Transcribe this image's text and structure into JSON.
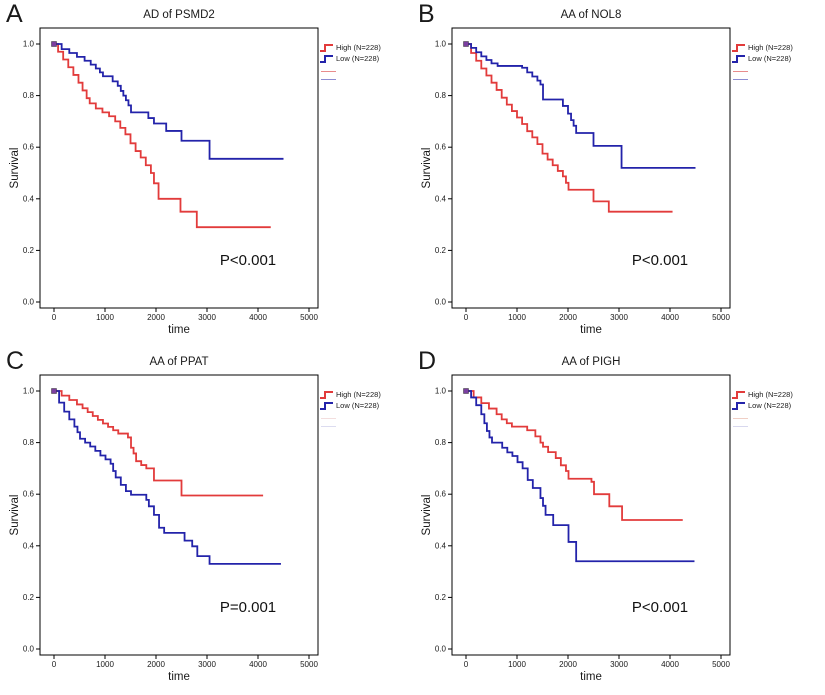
{
  "figure": {
    "background": "#ffffff"
  },
  "colors": {
    "high": "#e23b3b",
    "low": "#2323aa",
    "frame": "#000000",
    "text": "#1a1a1a",
    "start_marker": "#7b3fa0"
  },
  "axes": {
    "xlabel": "time",
    "ylabel": "Survival",
    "x_ticks": [
      0,
      1000,
      2000,
      3000,
      4000,
      5000
    ],
    "y_tick_labels": [
      "1.0",
      "0.8",
      "0.6",
      "0.4",
      "0.2",
      "0.0"
    ],
    "xlim": [
      0,
      5000
    ],
    "ylim": [
      0.0,
      1.0
    ]
  },
  "chart_data": [
    {
      "type": "line",
      "subtype": "kaplan-meier-step",
      "letter": "A",
      "title": "AD of PSMD2",
      "p_value": "P<0.001",
      "xlabel": "time",
      "ylabel": "Survival",
      "xlim": [
        0,
        5000
      ],
      "ylim": [
        0.0,
        1.0
      ],
      "censor_line_colors": [
        "#e88c8c",
        "#8c8cd2"
      ],
      "series": [
        {
          "name": "High  (N=228)",
          "color": "#e23b3b",
          "points": [
            [
              0,
              1.0
            ],
            [
              80,
              0.97
            ],
            [
              180,
              0.94
            ],
            [
              280,
              0.91
            ],
            [
              380,
              0.88
            ],
            [
              480,
              0.85
            ],
            [
              560,
              0.82
            ],
            [
              640,
              0.79
            ],
            [
              700,
              0.77
            ],
            [
              820,
              0.75
            ],
            [
              950,
              0.735
            ],
            [
              1080,
              0.72
            ],
            [
              1200,
              0.7
            ],
            [
              1300,
              0.675
            ],
            [
              1400,
              0.65
            ],
            [
              1500,
              0.615
            ],
            [
              1600,
              0.585
            ],
            [
              1700,
              0.56
            ],
            [
              1800,
              0.53
            ],
            [
              1900,
              0.5
            ],
            [
              1960,
              0.46
            ],
            [
              2050,
              0.4
            ],
            [
              2480,
              0.35
            ],
            [
              2800,
              0.29
            ],
            [
              4250,
              0.29
            ]
          ]
        },
        {
          "name": "Low  (N=228)",
          "color": "#2323aa",
          "points": [
            [
              0,
              1.0
            ],
            [
              150,
              0.98
            ],
            [
              300,
              0.965
            ],
            [
              450,
              0.95
            ],
            [
              600,
              0.935
            ],
            [
              720,
              0.92
            ],
            [
              820,
              0.905
            ],
            [
              900,
              0.89
            ],
            [
              960,
              0.875
            ],
            [
              1150,
              0.855
            ],
            [
              1250,
              0.838
            ],
            [
              1310,
              0.818
            ],
            [
              1360,
              0.8
            ],
            [
              1410,
              0.782
            ],
            [
              1460,
              0.762
            ],
            [
              1510,
              0.735
            ],
            [
              1850,
              0.713
            ],
            [
              1960,
              0.692
            ],
            [
              2200,
              0.663
            ],
            [
              2500,
              0.625
            ],
            [
              3050,
              0.555
            ],
            [
              4500,
              0.555
            ]
          ]
        }
      ]
    },
    {
      "type": "line",
      "subtype": "kaplan-meier-step",
      "letter": "B",
      "title": "AA of NOL8",
      "p_value": "P<0.001",
      "xlabel": "time",
      "ylabel": "Survival",
      "xlim": [
        0,
        5000
      ],
      "ylim": [
        0.0,
        1.0
      ],
      "censor_line_colors": [
        "#e88c8c",
        "#8c8cd2"
      ],
      "series": [
        {
          "name": "High  (N=228)",
          "color": "#e23b3b",
          "points": [
            [
              0,
              1.0
            ],
            [
              100,
              0.965
            ],
            [
              200,
              0.935
            ],
            [
              300,
              0.905
            ],
            [
              400,
              0.878
            ],
            [
              500,
              0.85
            ],
            [
              600,
              0.822
            ],
            [
              700,
              0.792
            ],
            [
              800,
              0.765
            ],
            [
              900,
              0.74
            ],
            [
              1000,
              0.715
            ],
            [
              1100,
              0.69
            ],
            [
              1200,
              0.662
            ],
            [
              1300,
              0.638
            ],
            [
              1400,
              0.612
            ],
            [
              1500,
              0.575
            ],
            [
              1600,
              0.552
            ],
            [
              1700,
              0.53
            ],
            [
              1800,
              0.508
            ],
            [
              1900,
              0.487
            ],
            [
              1960,
              0.462
            ],
            [
              2010,
              0.435
            ],
            [
              2500,
              0.39
            ],
            [
              2800,
              0.35
            ],
            [
              4050,
              0.35
            ]
          ]
        },
        {
          "name": "Low  (N=228)",
          "color": "#2323aa",
          "points": [
            [
              0,
              1.0
            ],
            [
              100,
              0.985
            ],
            [
              200,
              0.968
            ],
            [
              300,
              0.952
            ],
            [
              400,
              0.938
            ],
            [
              500,
              0.925
            ],
            [
              620,
              0.915
            ],
            [
              1100,
              0.908
            ],
            [
              1200,
              0.89
            ],
            [
              1300,
              0.874
            ],
            [
              1400,
              0.858
            ],
            [
              1460,
              0.843
            ],
            [
              1510,
              0.785
            ],
            [
              1900,
              0.76
            ],
            [
              2000,
              0.73
            ],
            [
              2060,
              0.705
            ],
            [
              2110,
              0.683
            ],
            [
              2160,
              0.655
            ],
            [
              2500,
              0.605
            ],
            [
              3050,
              0.52
            ],
            [
              4500,
              0.52
            ]
          ]
        }
      ]
    },
    {
      "type": "line",
      "subtype": "kaplan-meier-step",
      "letter": "C",
      "title": "AA of PPAT",
      "p_value": "P=0.001",
      "xlabel": "time",
      "ylabel": "Survival",
      "xlim": [
        0,
        5000
      ],
      "ylim": [
        0.0,
        1.0
      ],
      "censor_line_colors": [
        "#f3dede",
        "#dcdcf0"
      ],
      "series": [
        {
          "name": "High  (N=228)",
          "color": "#e23b3b",
          "points": [
            [
              0,
              1.0
            ],
            [
              150,
              0.982
            ],
            [
              300,
              0.965
            ],
            [
              450,
              0.948
            ],
            [
              560,
              0.933
            ],
            [
              660,
              0.918
            ],
            [
              760,
              0.903
            ],
            [
              860,
              0.888
            ],
            [
              960,
              0.874
            ],
            [
              1060,
              0.861
            ],
            [
              1160,
              0.848
            ],
            [
              1260,
              0.835
            ],
            [
              1450,
              0.82
            ],
            [
              1510,
              0.78
            ],
            [
              1560,
              0.758
            ],
            [
              1610,
              0.728
            ],
            [
              1710,
              0.713
            ],
            [
              1810,
              0.7
            ],
            [
              1960,
              0.653
            ],
            [
              2500,
              0.595
            ],
            [
              4100,
              0.595
            ]
          ]
        },
        {
          "name": "Low  (N=228)",
          "color": "#2323aa",
          "points": [
            [
              0,
              1.0
            ],
            [
              100,
              0.955
            ],
            [
              200,
              0.92
            ],
            [
              300,
              0.89
            ],
            [
              400,
              0.862
            ],
            [
              460,
              0.84
            ],
            [
              510,
              0.815
            ],
            [
              610,
              0.8
            ],
            [
              710,
              0.785
            ],
            [
              810,
              0.768
            ],
            [
              910,
              0.75
            ],
            [
              1010,
              0.735
            ],
            [
              1110,
              0.718
            ],
            [
              1160,
              0.69
            ],
            [
              1210,
              0.665
            ],
            [
              1310,
              0.636
            ],
            [
              1410,
              0.612
            ],
            [
              1510,
              0.598
            ],
            [
              1810,
              0.578
            ],
            [
              1860,
              0.553
            ],
            [
              1960,
              0.52
            ],
            [
              2060,
              0.47
            ],
            [
              2160,
              0.45
            ],
            [
              2560,
              0.42
            ],
            [
              2710,
              0.398
            ],
            [
              2810,
              0.36
            ],
            [
              3050,
              0.33
            ],
            [
              4450,
              0.33
            ]
          ]
        }
      ]
    },
    {
      "type": "line",
      "subtype": "kaplan-meier-step",
      "letter": "D",
      "title": "AA of PIGH",
      "p_value": "P<0.001",
      "xlabel": "time",
      "ylabel": "Survival",
      "xlim": [
        0,
        5000
      ],
      "ylim": [
        0.0,
        1.0
      ],
      "censor_line_colors": [
        "#f0cfc5",
        "#d8d8ee"
      ],
      "series": [
        {
          "name": "High (N=228)",
          "color": "#e23b3b",
          "points": [
            [
              0,
              1.0
            ],
            [
              150,
              0.975
            ],
            [
              300,
              0.953
            ],
            [
              450,
              0.932
            ],
            [
              600,
              0.91
            ],
            [
              700,
              0.89
            ],
            [
              800,
              0.875
            ],
            [
              900,
              0.862
            ],
            [
              1200,
              0.848
            ],
            [
              1360,
              0.824
            ],
            [
              1460,
              0.8
            ],
            [
              1510,
              0.784
            ],
            [
              1610,
              0.763
            ],
            [
              1760,
              0.74
            ],
            [
              1860,
              0.712
            ],
            [
              1960,
              0.69
            ],
            [
              2010,
              0.66
            ],
            [
              2460,
              0.648
            ],
            [
              2510,
              0.6
            ],
            [
              2810,
              0.553
            ],
            [
              3060,
              0.5
            ],
            [
              4250,
              0.5
            ]
          ]
        },
        {
          "name": "Low  (N=228)",
          "color": "#2323aa",
          "points": [
            [
              0,
              1.0
            ],
            [
              100,
              0.975
            ],
            [
              200,
              0.945
            ],
            [
              300,
              0.91
            ],
            [
              360,
              0.875
            ],
            [
              410,
              0.845
            ],
            [
              460,
              0.82
            ],
            [
              510,
              0.8
            ],
            [
              710,
              0.78
            ],
            [
              810,
              0.762
            ],
            [
              910,
              0.748
            ],
            [
              1010,
              0.724
            ],
            [
              1110,
              0.7
            ],
            [
              1210,
              0.655
            ],
            [
              1310,
              0.624
            ],
            [
              1460,
              0.585
            ],
            [
              1510,
              0.555
            ],
            [
              1560,
              0.52
            ],
            [
              1710,
              0.48
            ],
            [
              2010,
              0.415
            ],
            [
              2160,
              0.34
            ],
            [
              4480,
              0.34
            ]
          ]
        }
      ]
    }
  ]
}
